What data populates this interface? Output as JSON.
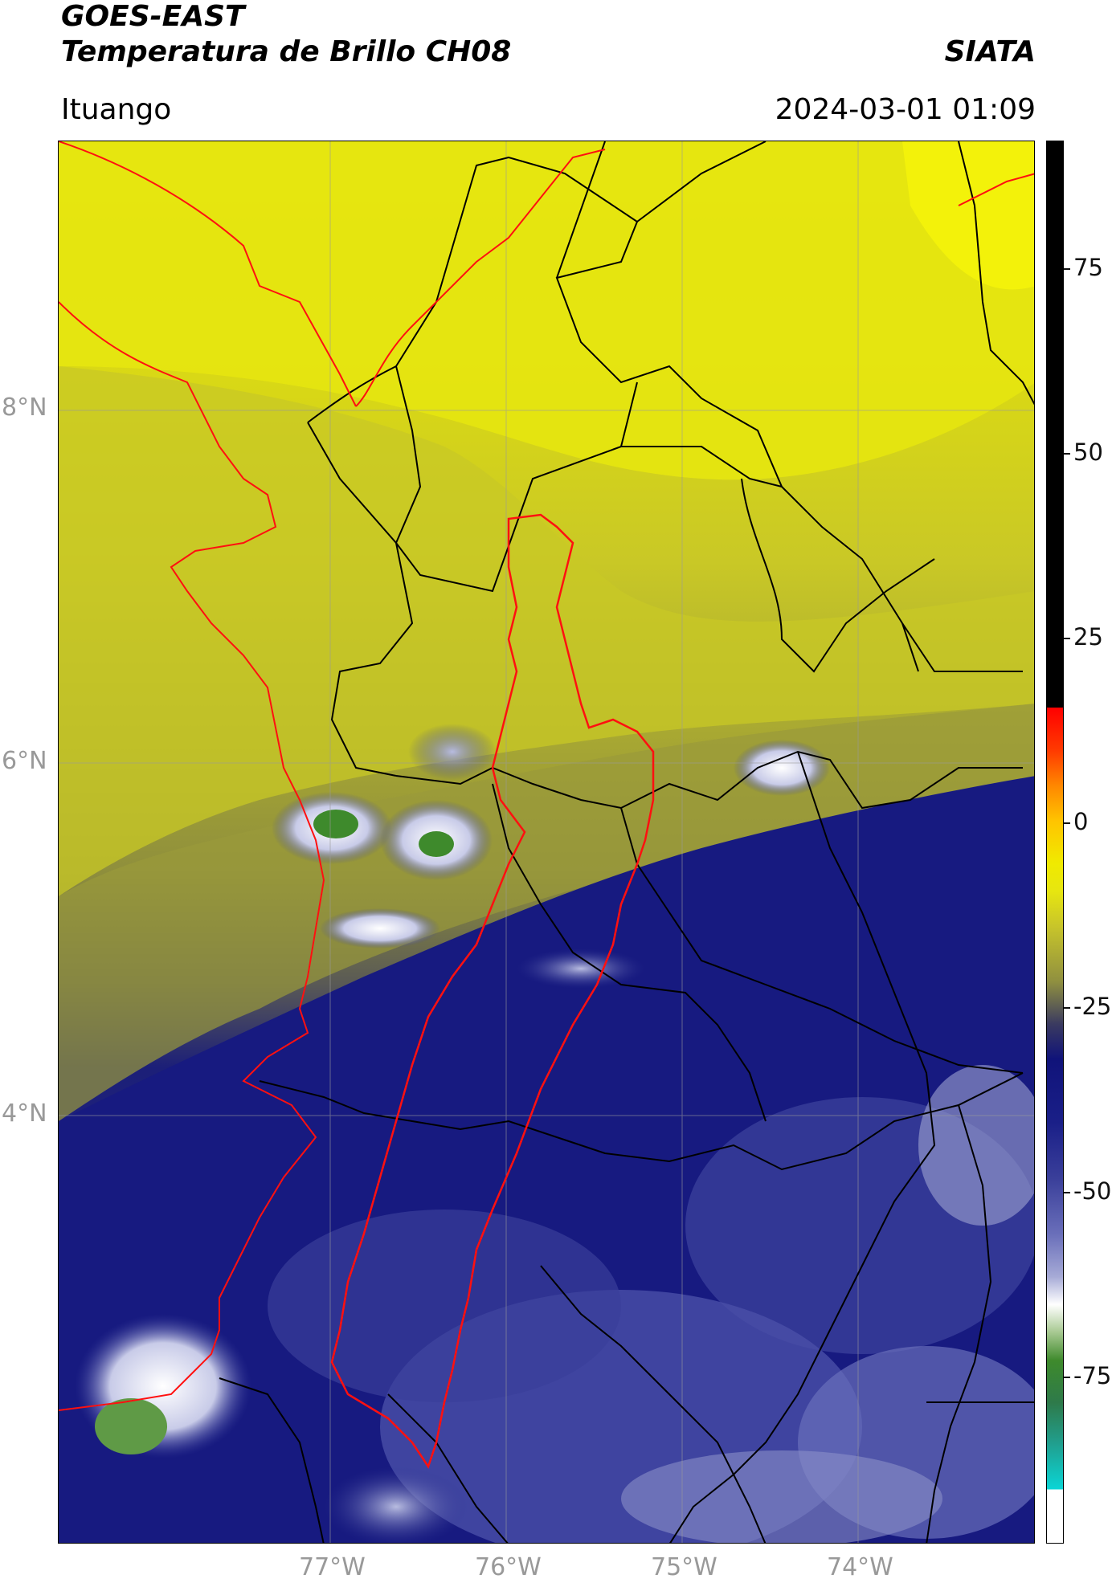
{
  "header": {
    "satellite": "GOES-EAST",
    "product": "Temperatura de Brillo CH08",
    "agency": "SIATA",
    "region": "Ituango",
    "datetime": "2024-03-01 01:09"
  },
  "map": {
    "lat_labels": [
      "8°N",
      "6°N",
      "4°N"
    ],
    "lon_labels": [
      "77°W",
      "76°W",
      "75°W",
      "74°W"
    ],
    "colors": {
      "cold_top": "#f3f20a",
      "warm_yellow": "#d9d81a",
      "olive": "#8f8f3a",
      "dark_blue": "#10137a",
      "mid_blue": "#3a3f9a",
      "light_blue": "#9ea3d2",
      "white": "#ffffff",
      "green": "#3e8a2c",
      "border_black": "#000000",
      "watershed_red": "#ff1010"
    }
  },
  "colorbar": {
    "ticks": [
      "75",
      "50",
      "25",
      "0",
      "-25",
      "-50",
      "-75"
    ]
  }
}
